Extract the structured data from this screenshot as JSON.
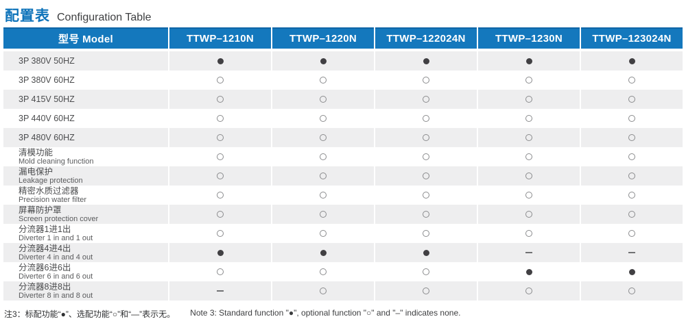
{
  "page": {
    "title_cn": "配置表",
    "title_en": "Configuration Table"
  },
  "table": {
    "columns": [
      "型号 Model",
      "TTWP–1210N",
      "TTWP–1220N",
      "TTWP–122024N",
      "TTWP–1230N",
      "TTWP–123024N"
    ],
    "symbol_legend": {
      "filled": "●",
      "open": "○",
      "dash": "–"
    },
    "rows": [
      {
        "label_cn": "3P 380V 50HZ",
        "label_en": "",
        "values": [
          "filled",
          "filled",
          "filled",
          "filled",
          "filled"
        ]
      },
      {
        "label_cn": "3P 380V 60HZ",
        "label_en": "",
        "values": [
          "open",
          "open",
          "open",
          "open",
          "open"
        ]
      },
      {
        "label_cn": "3P 415V 50HZ",
        "label_en": "",
        "values": [
          "open",
          "open",
          "open",
          "open",
          "open"
        ]
      },
      {
        "label_cn": "3P 440V 60HZ",
        "label_en": "",
        "values": [
          "open",
          "open",
          "open",
          "open",
          "open"
        ]
      },
      {
        "label_cn": "3P 480V 60HZ",
        "label_en": "",
        "values": [
          "open",
          "open",
          "open",
          "open",
          "open"
        ]
      },
      {
        "label_cn": "清模功能",
        "label_en": "Mold cleaning function",
        "values": [
          "open",
          "open",
          "open",
          "open",
          "open"
        ]
      },
      {
        "label_cn": "漏电保护",
        "label_en": "Leakage protection",
        "values": [
          "open",
          "open",
          "open",
          "open",
          "open"
        ]
      },
      {
        "label_cn": "精密水质过滤器",
        "label_en": "Precision water filter",
        "values": [
          "open",
          "open",
          "open",
          "open",
          "open"
        ]
      },
      {
        "label_cn": "屏幕防护罩",
        "label_en": "Screen protection cover",
        "values": [
          "open",
          "open",
          "open",
          "open",
          "open"
        ]
      },
      {
        "label_cn": "分流器1进1出",
        "label_en": "Diverter 1 in and 1 out",
        "values": [
          "open",
          "open",
          "open",
          "open",
          "open"
        ]
      },
      {
        "label_cn": "分流器4进4出",
        "label_en": "Diverter 4 in and 4 out",
        "values": [
          "filled",
          "filled",
          "filled",
          "dash",
          "dash"
        ]
      },
      {
        "label_cn": "分流器6进6出",
        "label_en": "Diverter 6 in and 6 out",
        "values": [
          "open",
          "open",
          "open",
          "filled",
          "filled"
        ]
      },
      {
        "label_cn": "分流器8进8出",
        "label_en": "Diverter 8 in and 8 out",
        "values": [
          "dash",
          "open",
          "open",
          "open",
          "open"
        ]
      }
    ]
  },
  "footnote": {
    "cn": "注3：标配功能“●”、选配功能“○”和“—”表示无。",
    "en": "Note 3: Standard function \"●\", optional function \"○\" and \"–\" indicates none."
  },
  "colors": {
    "header_blue": "#1478bd",
    "title_blue": "#0e73ba",
    "stripe_gray": "#eeeeef",
    "symbol_dark": "#414043"
  }
}
